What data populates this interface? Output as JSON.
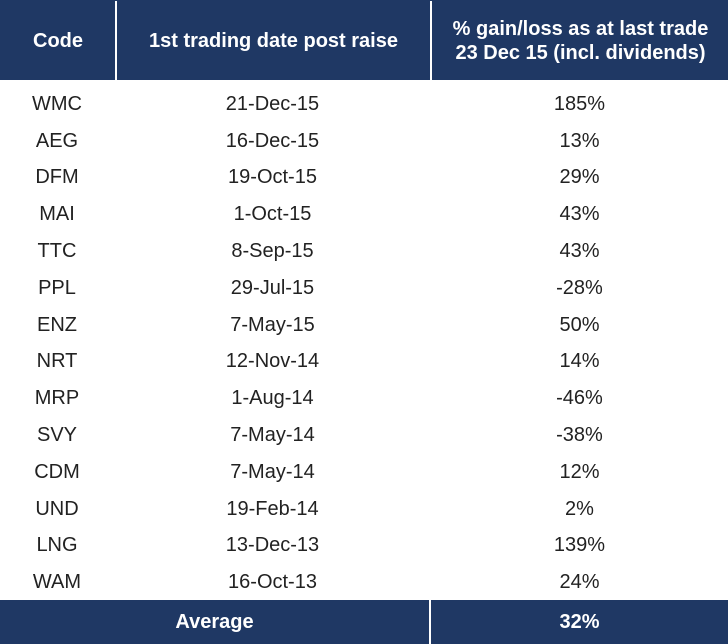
{
  "header": {
    "code": "Code",
    "date": "1st trading date post raise",
    "gain_line1": "% gain/loss as at last trade",
    "gain_line2": "23 Dec 15 (incl. dividends)"
  },
  "rows": [
    {
      "code": "WMC",
      "date": "21-Dec-15",
      "gain": "185%"
    },
    {
      "code": "AEG",
      "date": "16-Dec-15",
      "gain": "13%"
    },
    {
      "code": "DFM",
      "date": "19-Oct-15",
      "gain": "29%"
    },
    {
      "code": "MAI",
      "date": "1-Oct-15",
      "gain": "43%"
    },
    {
      "code": "TTC",
      "date": "8-Sep-15",
      "gain": "43%"
    },
    {
      "code": "PPL",
      "date": "29-Jul-15",
      "gain": "-28%"
    },
    {
      "code": "ENZ",
      "date": "7-May-15",
      "gain": "50%"
    },
    {
      "code": "NRT",
      "date": "12-Nov-14",
      "gain": "14%"
    },
    {
      "code": "MRP",
      "date": "1-Aug-14",
      "gain": "-46%"
    },
    {
      "code": "SVY",
      "date": "7-May-14",
      "gain": "-38%"
    },
    {
      "code": "CDM",
      "date": "7-May-14",
      "gain": "12%"
    },
    {
      "code": "UND",
      "date": "19-Feb-14",
      "gain": "2%"
    },
    {
      "code": "LNG",
      "date": "13-Dec-13",
      "gain": "139%"
    },
    {
      "code": "WAM",
      "date": "16-Oct-13",
      "gain": "24%"
    }
  ],
  "footer": {
    "label": "Average",
    "value": "32%"
  },
  "colors": {
    "header_bg": "#1f3864",
    "header_text": "#ffffff",
    "body_text": "#222222"
  }
}
